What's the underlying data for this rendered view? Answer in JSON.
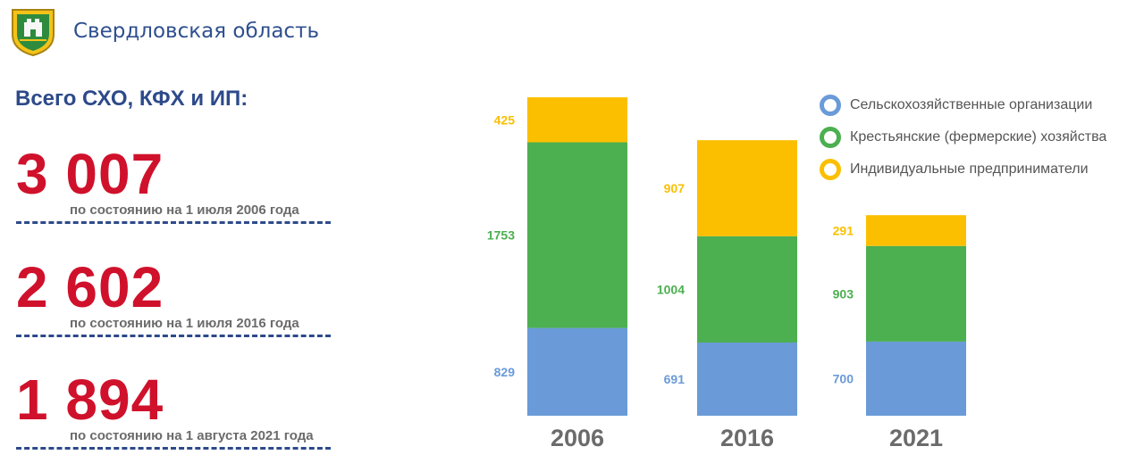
{
  "header": {
    "region": "Свердловская область"
  },
  "subtitle": "Всего СХО, КФХ и ИП:",
  "stats": [
    {
      "value": "3 007",
      "caption": "по состоянию на 1 июля 2006 года"
    },
    {
      "value": "2 602",
      "caption": "по состоянию на 1 июля 2016 года"
    },
    {
      "value": "1 894",
      "caption": "по состоянию на 1 августа 2021 года"
    }
  ],
  "colors": {
    "org": "#6a9bd8",
    "farm": "#4caf50",
    "ip": "#fbbf00",
    "title": "#2d4a8a",
    "accent": "#d0112b"
  },
  "chart_data": {
    "type": "bar",
    "stacked": true,
    "categories": [
      "2006",
      "2016",
      "2021"
    ],
    "series": [
      {
        "name": "Сельскохозяйственные организации",
        "values": [
          829,
          691,
          700
        ],
        "color": "#6a9bd8"
      },
      {
        "name": "Крестьянские (фермерские) хозяйства",
        "values": [
          1753,
          1004,
          903
        ],
        "color": "#4caf50"
      },
      {
        "name": "Индивидуальные предприниматели",
        "values": [
          425,
          907,
          291
        ],
        "color": "#fbbf00"
      }
    ],
    "legend_position": "top-right",
    "grid": false
  }
}
